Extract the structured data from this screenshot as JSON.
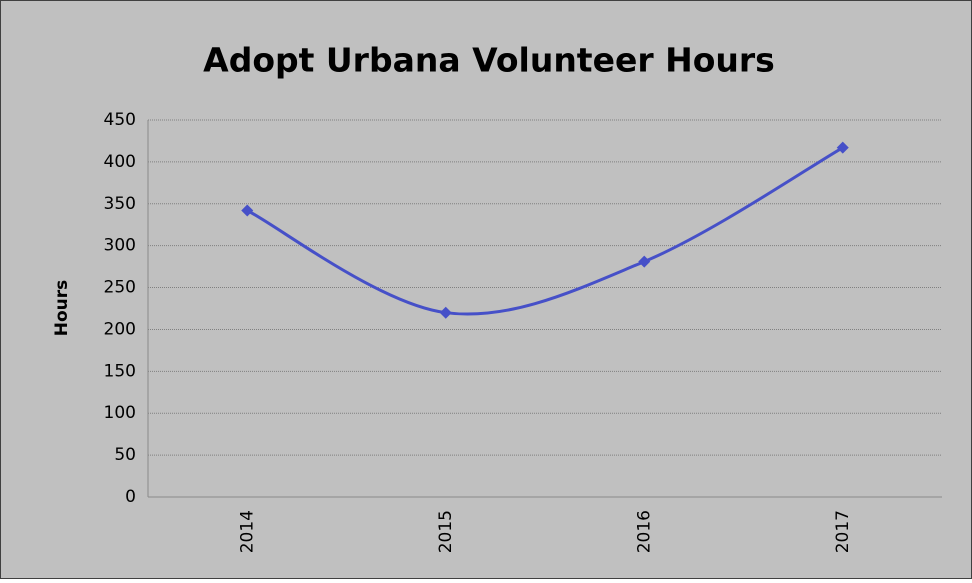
{
  "chart_data": {
    "type": "line",
    "title": "Adopt Urbana Volunteer Hours",
    "y_label": "Hours",
    "categories": [
      "2014",
      "2015",
      "2016",
      "2017"
    ],
    "series": [
      {
        "name": "Hours",
        "color": "#4650c8",
        "values": [
          342,
          220,
          281,
          417
        ]
      }
    ],
    "ylim": [
      0,
      450
    ],
    "yticks": [
      0,
      50,
      100,
      150,
      200,
      250,
      300,
      350,
      400,
      450
    ],
    "grid": true,
    "smooth": true
  }
}
